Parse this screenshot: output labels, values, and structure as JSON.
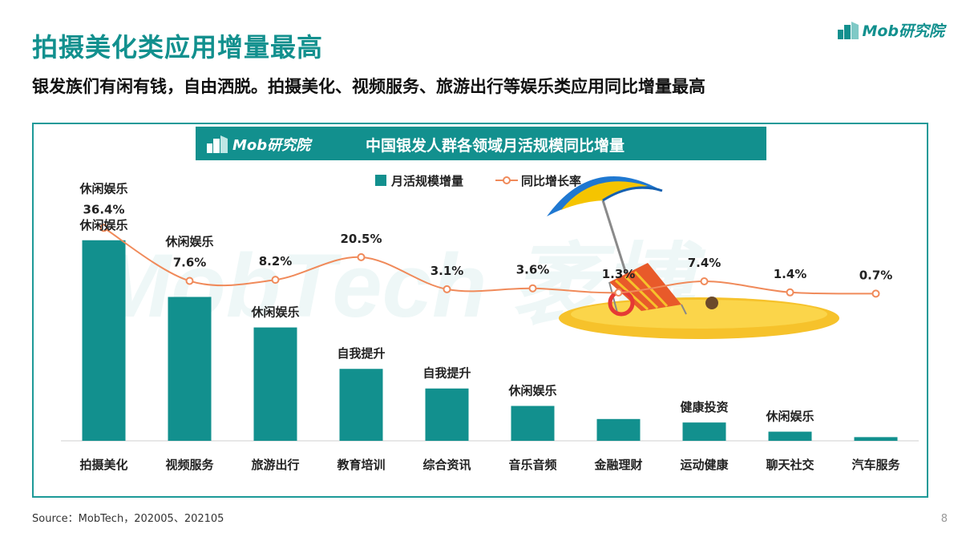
{
  "header": {
    "title": "拍摄美化类应用增量最高",
    "subtitle": "银发族们有闲有钱，自由洒脱。拍摄美化、视频服务、旅游出行等娱乐类应用同比增量最高",
    "logo_text": "Mob研究院"
  },
  "banner": {
    "logo_text": "Mob研究院",
    "title": "中国银发人群各领域月活规模同比增量"
  },
  "watermark": "MobTech 袤博",
  "chart_data": {
    "type": "bar",
    "title": "中国银发人群各领域月活规模同比增量",
    "categories": [
      "拍摄美化",
      "视频服务",
      "旅游出行",
      "教育培训",
      "综合资讯",
      "音乐音频",
      "金融理财",
      "运动健康",
      "聊天社交",
      "汽车服务"
    ],
    "series": [
      {
        "name": "月活规模增量",
        "type": "bar",
        "values": [
          92,
          66,
          52,
          33,
          24,
          16,
          10,
          8.4,
          4.2,
          1.7
        ]
      },
      {
        "name": "同比增长率",
        "type": "line",
        "values": [
          36.4,
          7.6,
          8.2,
          20.5,
          3.1,
          3.6,
          1.3,
          7.4,
          1.4,
          0.7
        ],
        "unit": "%"
      }
    ],
    "bar_tags": [
      "休闲娱乐",
      "",
      "休闲娱乐",
      "自我提升",
      "自我提升",
      "休闲娱乐",
      "",
      "健康投资",
      "休闲娱乐",
      ""
    ],
    "line_tags": [
      "休闲娱乐",
      "休闲娱乐",
      "",
      "",
      "",
      "",
      "",
      "",
      "",
      ""
    ],
    "rate_labels": [
      "36.4%",
      "7.6%",
      "8.2%",
      "20.5%",
      "3.1%",
      "3.6%",
      "1.3%",
      "7.4%",
      "1.4%",
      "0.7%"
    ],
    "legend_position": "top",
    "colors": {
      "bar": "#12908e",
      "line": "#f08a5a",
      "label": "#222222"
    },
    "grid": false
  },
  "footer": {
    "source": "Source：MobTech，202005、202105",
    "page_number": "8"
  }
}
